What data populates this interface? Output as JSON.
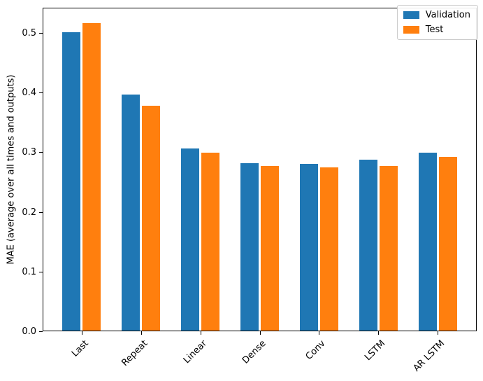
{
  "chart_data": {
    "type": "bar",
    "title": "",
    "xlabel": "",
    "ylabel": "MAE (average over all times and outputs)",
    "categories": [
      "Last",
      "Repeat",
      "Linear",
      "Dense",
      "Conv",
      "LSTM",
      "AR LSTM"
    ],
    "series": [
      {
        "name": "Validation",
        "color": "#1f77b4",
        "values": [
          0.501,
          0.396,
          0.306,
          0.281,
          0.28,
          0.287,
          0.299
        ]
      },
      {
        "name": "Test",
        "color": "#ff7f0e",
        "values": [
          0.516,
          0.378,
          0.299,
          0.277,
          0.275,
          0.277,
          0.292
        ]
      }
    ],
    "yticks": [
      "0.0",
      "0.1",
      "0.2",
      "0.3",
      "0.4",
      "0.5"
    ],
    "ylim": [
      0,
      0.542
    ],
    "xlim": [
      -0.655,
      6.655
    ],
    "bar_width": 0.3,
    "bar_offsets": [
      -0.17,
      0.17
    ],
    "x_tick_rotation_deg": 45,
    "grid": false,
    "legend_position": "upper right"
  }
}
